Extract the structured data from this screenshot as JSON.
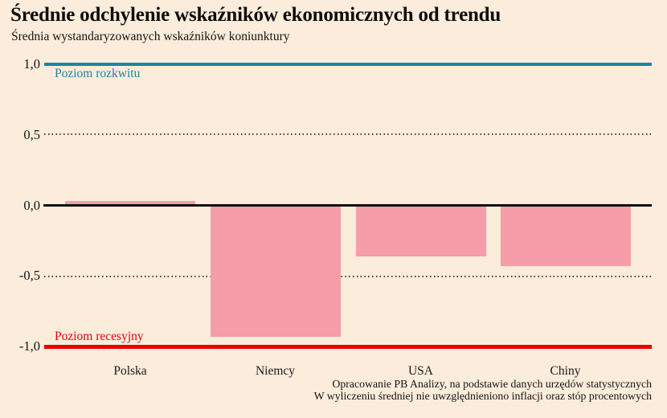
{
  "page": {
    "title": "Średnie odchylenie wskaźników ekonomicznych od trendu",
    "subtitle": "Średnia wystandaryzowanych wskaźników koniunktury"
  },
  "chart_data": {
    "type": "bar",
    "title": "Średnie odchylenie wskaźników ekonomicznych od trendu",
    "subtitle": "Średnia wystandaryzowanych wskaźników koniunktury",
    "categories": [
      "Polska",
      "Niemcy",
      "USA",
      "Chiny"
    ],
    "values": [
      0.03,
      -0.93,
      -0.36,
      -0.43
    ],
    "ylim": [
      -1.0,
      1.0
    ],
    "y_ticks": [
      "1,0",
      "0,5",
      "0,0",
      "-0,5",
      "-1,0"
    ],
    "y_tick_values": [
      1.0,
      0.5,
      0.0,
      -0.5,
      -1.0
    ],
    "grid": "dotted horizontal lines at +0,5 and -0,5; solid black zero line",
    "legend_position": "none",
    "reference_lines": [
      {
        "label": "Poziom rozkwitu",
        "value": 1.0,
        "color": "#1785a8"
      },
      {
        "label": "Poziom recesyjny",
        "value": -1.0,
        "color": "#ec0600"
      }
    ],
    "bar_color": "#f59da9"
  },
  "source": {
    "line1": "Opracowanie PB Analizy, na podstawie danych urzędów statystycznych",
    "line2": "W wyliczeniu średniej nie uwzględnieniono inflacji oraz stóp procentowych"
  },
  "colors": {
    "background": "#fbecdb",
    "bar": "#f59da9",
    "boom_line": "#1785a8",
    "recession_line": "#ec0600",
    "zero_line": "#0b0b0b",
    "text": "#141414"
  }
}
